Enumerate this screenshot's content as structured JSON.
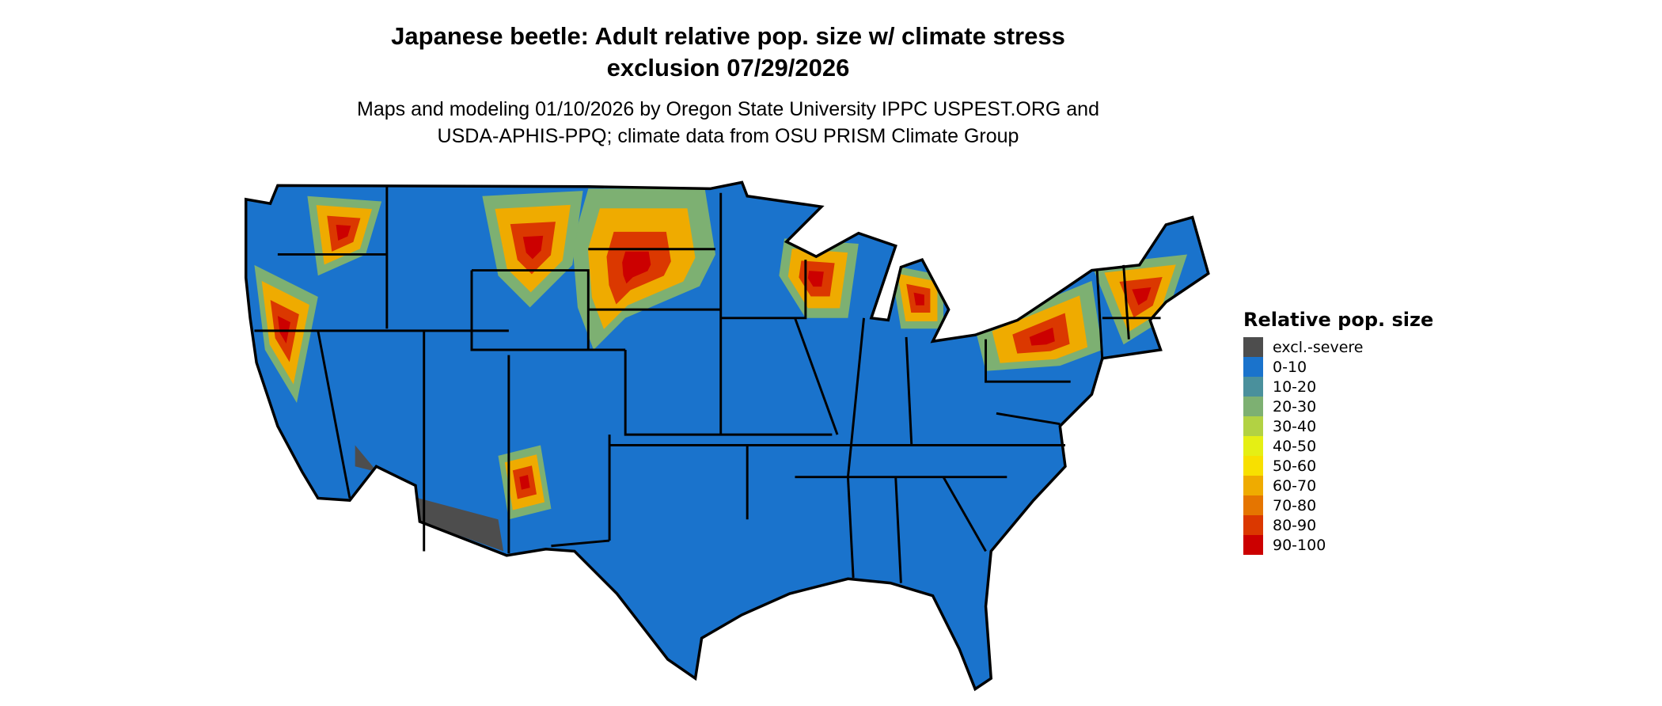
{
  "title": {
    "line1": "Japanese beetle: Adult relative pop. size w/ climate stress",
    "line2": "exclusion 07/29/2026"
  },
  "subtitle": {
    "line1": "Maps and modeling 01/10/2026 by Oregon State University IPPC USPEST.ORG and",
    "line2": "USDA-APHIS-PPQ; climate data from OSU PRISM Climate Group"
  },
  "map": {
    "region": "Contiguous United States",
    "base_color": "#1a73cc",
    "border_color": "#000000"
  },
  "legend": {
    "title": "Relative pop. size",
    "items": [
      {
        "label": "excl.-severe",
        "color": "#4d4d4d"
      },
      {
        "label": "0-10",
        "color": "#1a73cc"
      },
      {
        "label": "10-20",
        "color": "#4a909c"
      },
      {
        "label": "20-30",
        "color": "#7db072"
      },
      {
        "label": "30-40",
        "color": "#b2d243"
      },
      {
        "label": "40-50",
        "color": "#e5ef14"
      },
      {
        "label": "50-60",
        "color": "#f8e000"
      },
      {
        "label": "60-70",
        "color": "#efab00"
      },
      {
        "label": "70-80",
        "color": "#e57500"
      },
      {
        "label": "80-90",
        "color": "#db3800"
      },
      {
        "label": "90-100",
        "color": "#cc0000"
      }
    ]
  }
}
